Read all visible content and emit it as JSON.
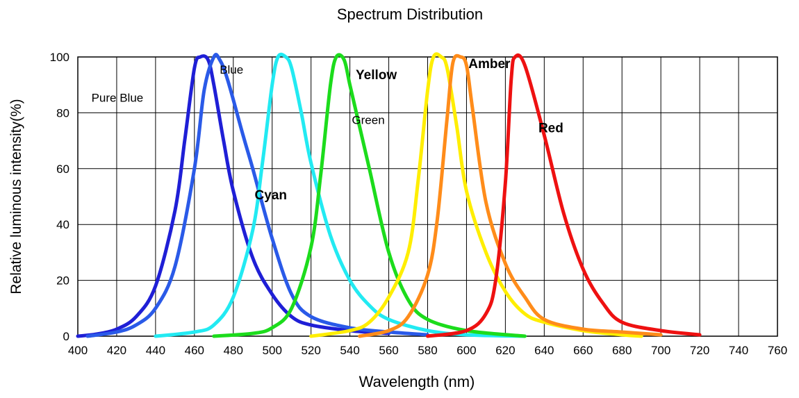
{
  "chart_data": {
    "type": "line",
    "title": "Spectrum Distribution",
    "xlabel": "Wavelength  (nm)",
    "ylabel": "Relative luminous intensity(%)",
    "xlim": [
      400,
      760
    ],
    "ylim": [
      0,
      100
    ],
    "x_ticks": [
      400,
      420,
      440,
      460,
      480,
      500,
      520,
      540,
      560,
      580,
      600,
      620,
      640,
      660,
      680,
      700,
      720,
      740,
      760
    ],
    "y_ticks": [
      0,
      20,
      40,
      60,
      80,
      100
    ],
    "grid": true,
    "series": [
      {
        "name": "Pure Blue",
        "color": "#1f1fd6",
        "label_bold": false,
        "points": [
          [
            400,
            0
          ],
          [
            410,
            0.8
          ],
          [
            420,
            2.5
          ],
          [
            430,
            7
          ],
          [
            440,
            18
          ],
          [
            450,
            45
          ],
          [
            455,
            70
          ],
          [
            460,
            96
          ],
          [
            463,
            100
          ],
          [
            467,
            99
          ],
          [
            470,
            90
          ],
          [
            475,
            70
          ],
          [
            480,
            52
          ],
          [
            490,
            28
          ],
          [
            500,
            15
          ],
          [
            510,
            7
          ],
          [
            520,
            4
          ],
          [
            540,
            2
          ],
          [
            560,
            1
          ]
        ]
      },
      {
        "name": "Blue",
        "color": "#2a5ae8",
        "label_bold": false,
        "points": [
          [
            405,
            0
          ],
          [
            420,
            1.5
          ],
          [
            430,
            4
          ],
          [
            440,
            10
          ],
          [
            450,
            25
          ],
          [
            460,
            60
          ],
          [
            465,
            88
          ],
          [
            470,
            100
          ],
          [
            473,
            99
          ],
          [
            477,
            92
          ],
          [
            485,
            72
          ],
          [
            490,
            60
          ],
          [
            500,
            35
          ],
          [
            510,
            15
          ],
          [
            520,
            7
          ],
          [
            540,
            3
          ],
          [
            560,
            1.5
          ],
          [
            580,
            0.5
          ]
        ]
      },
      {
        "name": "Cyan",
        "color": "#22eaf2",
        "label_bold": true,
        "points": [
          [
            440,
            0
          ],
          [
            460,
            1.5
          ],
          [
            470,
            4
          ],
          [
            480,
            14
          ],
          [
            490,
            38
          ],
          [
            495,
            62
          ],
          [
            500,
            90
          ],
          [
            503,
            100
          ],
          [
            507,
            100
          ],
          [
            510,
            96
          ],
          [
            515,
            80
          ],
          [
            520,
            62
          ],
          [
            530,
            36
          ],
          [
            540,
            20
          ],
          [
            550,
            11
          ],
          [
            560,
            6
          ],
          [
            580,
            2
          ],
          [
            600,
            0.5
          ],
          [
            630,
            0
          ]
        ]
      },
      {
        "name": "Green",
        "color": "#1cdc1c",
        "label_bold": false,
        "points": [
          [
            470,
            0
          ],
          [
            490,
            1
          ],
          [
            500,
            3
          ],
          [
            510,
            10
          ],
          [
            520,
            32
          ],
          [
            525,
            58
          ],
          [
            530,
            90
          ],
          [
            533,
            100
          ],
          [
            537,
            99
          ],
          [
            540,
            90
          ],
          [
            545,
            75
          ],
          [
            550,
            60
          ],
          [
            560,
            30
          ],
          [
            570,
            13
          ],
          [
            580,
            6
          ],
          [
            600,
            2
          ],
          [
            630,
            0
          ]
        ]
      },
      {
        "name": "Yellow",
        "color": "#ffee00",
        "label_bold": true,
        "points": [
          [
            520,
            0
          ],
          [
            540,
            2
          ],
          [
            550,
            5
          ],
          [
            560,
            14
          ],
          [
            570,
            30
          ],
          [
            575,
            55
          ],
          [
            580,
            88
          ],
          [
            583,
            100
          ],
          [
            587,
            100
          ],
          [
            590,
            96
          ],
          [
            595,
            75
          ],
          [
            600,
            52
          ],
          [
            610,
            30
          ],
          [
            620,
            16
          ],
          [
            630,
            8
          ],
          [
            640,
            5
          ],
          [
            660,
            2
          ],
          [
            680,
            0.5
          ],
          [
            690,
            0
          ]
        ]
      },
      {
        "name": "Amber",
        "color": "#ff8c1a",
        "label_bold": true,
        "points": [
          [
            545,
            0
          ],
          [
            560,
            2
          ],
          [
            570,
            7
          ],
          [
            580,
            22
          ],
          [
            585,
            42
          ],
          [
            590,
            78
          ],
          [
            593,
            98
          ],
          [
            597,
            100
          ],
          [
            600,
            97
          ],
          [
            603,
            82
          ],
          [
            610,
            48
          ],
          [
            620,
            26
          ],
          [
            630,
            14
          ],
          [
            640,
            6
          ],
          [
            660,
            2.5
          ],
          [
            680,
            1.5
          ],
          [
            700,
            0.5
          ]
        ]
      },
      {
        "name": "Red",
        "color": "#ee1111",
        "label_bold": true,
        "points": [
          [
            580,
            0
          ],
          [
            600,
            2
          ],
          [
            610,
            8
          ],
          [
            615,
            20
          ],
          [
            620,
            55
          ],
          [
            623,
            92
          ],
          [
            625,
            100
          ],
          [
            630,
            97
          ],
          [
            640,
            72
          ],
          [
            650,
            44
          ],
          [
            660,
            24
          ],
          [
            670,
            12
          ],
          [
            680,
            5
          ],
          [
            700,
            2
          ],
          [
            720,
            0.5
          ]
        ]
      }
    ],
    "annotations": [
      "Pure Blue",
      "Blue",
      "Cyan",
      "Green",
      "Yellow",
      "Amber",
      "Red"
    ]
  }
}
